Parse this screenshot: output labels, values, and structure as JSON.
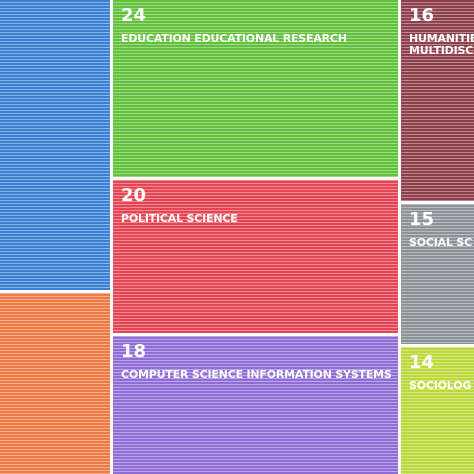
{
  "chart_data": {
    "type": "treemap",
    "title": "",
    "cells": [
      {
        "label": "",
        "value": null,
        "color": "#3d7fd4"
      },
      {
        "label": "",
        "value": null,
        "color": "#ef7a45"
      },
      {
        "label": "EDUCATION EDUCATIONAL RESEARCH",
        "value": 24,
        "color": "#62c13a"
      },
      {
        "label": "POLITICAL SCIENCE",
        "value": 20,
        "color": "#e54553"
      },
      {
        "label": "COMPUTER SCIENCE INFORMATION SYSTEMS",
        "value": 18,
        "color": "#8f6ed8"
      },
      {
        "label": "HUMANITIE\nMULTIDISC",
        "value": 16,
        "color": "#8e3f4b"
      },
      {
        "label": "SOCIAL SC",
        "value": 15,
        "color": "#8b9397"
      },
      {
        "label": "SOCIOLOG",
        "value": 14,
        "color": "#bcd83a"
      }
    ]
  }
}
